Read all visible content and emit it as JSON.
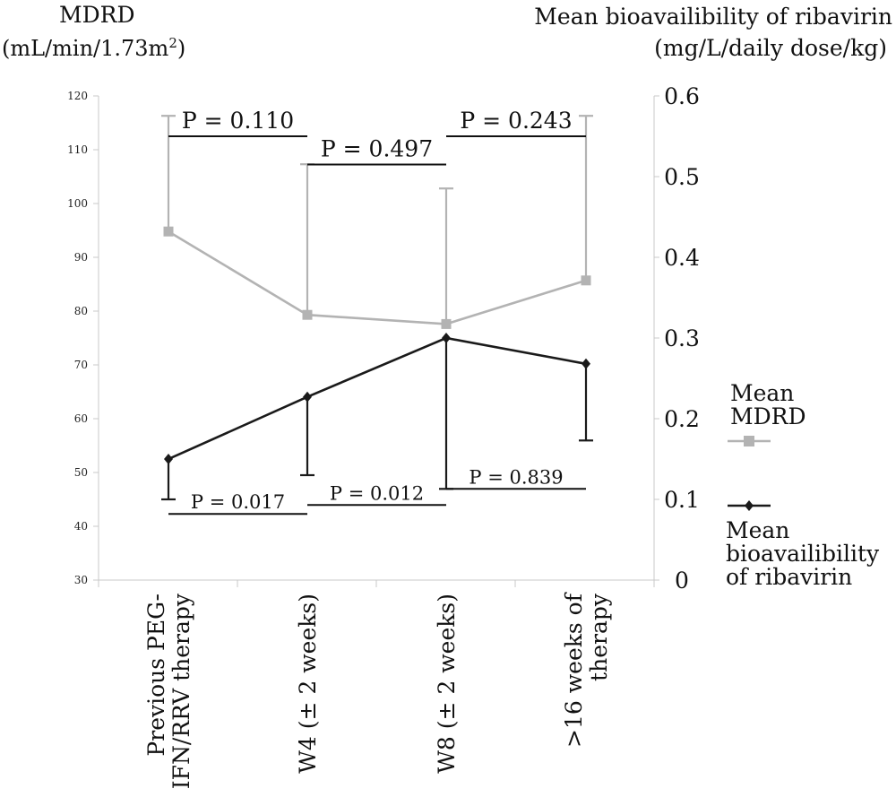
{
  "chart_data": {
    "type": "line",
    "categories": [
      [
        "Previous PEG-",
        "IFN/RRV therapy"
      ],
      [
        "W4 (± 2 weeks)"
      ],
      [
        "W8 (± 2 weeks)"
      ],
      [
        ">16 weeks of",
        "therapy"
      ]
    ],
    "left_axis": {
      "label_lines": [
        "MDRD",
        "(mL/min/1.73m²)"
      ],
      "ylim": [
        30,
        120
      ],
      "ticks": [
        30,
        40,
        50,
        60,
        70,
        80,
        90,
        100,
        110,
        120
      ]
    },
    "right_axis": {
      "label_lines": [
        "Mean bioavailibility of ribavirin",
        "(mg/L/daily dose/kg)"
      ],
      "ylim": [
        0,
        0.6
      ],
      "ticks": [
        "0",
        "0.1",
        "0.2",
        "0.3",
        "0.4",
        "0.5",
        "0.6"
      ]
    },
    "series": [
      {
        "name_lines": [
          "Mean",
          "MDRD"
        ],
        "axis": "left",
        "color": "#b3b3b3",
        "marker": "square",
        "values": [
          94.8,
          79.3,
          77.6,
          85.7
        ],
        "error_upper": [
          116.3,
          107.3,
          102.8,
          116.3
        ]
      },
      {
        "name_lines": [
          "Mean",
          "bioavailibility",
          "of ribavirin"
        ],
        "axis": "right",
        "color": "#1a1a1a",
        "marker": "diamond",
        "values": [
          0.15,
          0.227,
          0.3,
          0.268
        ],
        "error_lower": [
          0.1,
          0.13,
          0.113,
          0.173
        ]
      }
    ],
    "comparisons_top": [
      {
        "label": "P = 0.110",
        "from": 0,
        "to": 1,
        "level": 0.55
      },
      {
        "label": "P = 0.243",
        "from": 2,
        "to": 3,
        "level": 0.55
      },
      {
        "label": "P = 0.497",
        "from": 1,
        "to": 2,
        "level": 0.515
      }
    ],
    "comparisons_bottom": [
      {
        "label": "P = 0.017",
        "from": 0,
        "to": 1,
        "level": 0.082
      },
      {
        "label": "P = 0.012",
        "from": 1,
        "to": 2,
        "level": 0.093
      },
      {
        "label": "P = 0.839",
        "from": 2,
        "to": 3,
        "level": 0.113
      }
    ]
  }
}
